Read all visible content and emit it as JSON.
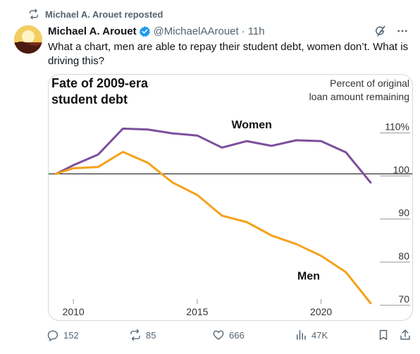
{
  "repost": {
    "label": "Michael A. Arouet reposted"
  },
  "post": {
    "author_name": "Michael A. Arouet",
    "handle": "@MichaelAArouet",
    "separator": "·",
    "time": "11h",
    "text": "What a chart, men are able to repay their student debt, women don’t. What is driving this?"
  },
  "chart_data": {
    "type": "line",
    "title_line1": "Fate of 2009-era",
    "title_line2": "student debt",
    "ylabel_line1": "Percent of original",
    "ylabel_line2": "loan amount remaining",
    "xlim": [
      2009,
      2022.6
    ],
    "ylim": [
      69,
      114
    ],
    "x_ticks": [
      2010,
      2015,
      2020
    ],
    "y_ticks": [
      110,
      100,
      90,
      80,
      70
    ],
    "y_tick_labels": [
      "110%",
      "100",
      "90",
      "80",
      "70"
    ],
    "reference_line": 100,
    "series": [
      {
        "name": "Women",
        "color": "#7b4f9d",
        "x": [
          2009.3,
          2010,
          2011,
          2012,
          2013,
          2014,
          2015,
          2016,
          2017,
          2018,
          2019,
          2020,
          2021,
          2022
        ],
        "y": [
          100,
          102,
          104.5,
          110.5,
          110.3,
          109.4,
          108.9,
          106.1,
          107.6,
          106.5,
          107.8,
          107.6,
          105,
          98
        ]
      },
      {
        "name": "Men",
        "color": "#f5a21b",
        "x": [
          2009.3,
          2010,
          2011,
          2012,
          2013,
          2014,
          2015,
          2016,
          2017,
          2018,
          2019,
          2020,
          2021,
          2022
        ],
        "y": [
          100,
          101.3,
          101.6,
          105.1,
          102.6,
          98,
          95.1,
          90.3,
          88.8,
          85.7,
          83.7,
          81,
          77.2,
          70
        ]
      }
    ]
  },
  "actions": {
    "replies": "152",
    "reposts": "85",
    "likes": "666",
    "views": "47K"
  },
  "colors": {
    "accent_blue": "#1d9bf0",
    "secondary_text": "#536471",
    "women_line": "#7b4f9d",
    "men_line": "#f5a21b"
  }
}
